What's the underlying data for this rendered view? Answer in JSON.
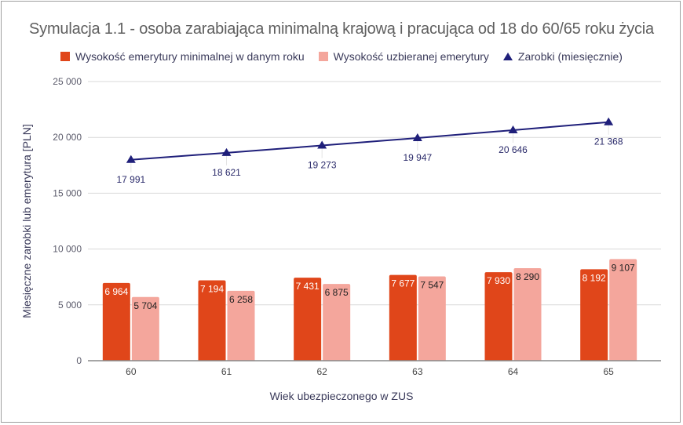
{
  "chart_data": {
    "type": "bar",
    "title": "Symulacja 1.1 - osoba zarabiająca minimalną krajową i pracująca od 18 do 60/65 roku życia",
    "xlabel": "Wiek ubezpieczonego w ZUS",
    "ylabel": "Miesięczne zarobki lub emerytura [PLN]",
    "categories": [
      "60",
      "61",
      "62",
      "63",
      "64",
      "65"
    ],
    "ylim": [
      0,
      25000
    ],
    "yticks": [
      0,
      5000,
      10000,
      15000,
      20000,
      25000
    ],
    "ytick_labels": [
      "0",
      "5 000",
      "10 000",
      "15 000",
      "20 000",
      "25 000"
    ],
    "grid": true,
    "legend_position": "top",
    "series": [
      {
        "name": "Wysokość emerytury minimalnej w danym roku",
        "type": "bar",
        "color": "#e0461a",
        "values": [
          6964,
          7194,
          7431,
          7677,
          7930,
          8192
        ],
        "labels": [
          "6 964",
          "7 194",
          "7 431",
          "7 677",
          "7 930",
          "8 192"
        ]
      },
      {
        "name": "Wysokość uzbieranej emerytury",
        "type": "bar",
        "color": "#f4a69c",
        "values": [
          5704,
          6258,
          6875,
          7547,
          8290,
          9107
        ],
        "labels": [
          "5 704",
          "6 258",
          "6 875",
          "7 547",
          "8 290",
          "9 107"
        ]
      },
      {
        "name": "Zarobki (miesięcznie)",
        "type": "line",
        "marker": "triangle",
        "color": "#1f1f7a",
        "values": [
          17991,
          18621,
          19273,
          19947,
          20646,
          21368
        ],
        "labels": [
          "17 991",
          "18 621",
          "19 273",
          "19 947",
          "20 646",
          "21 368"
        ]
      }
    ]
  },
  "legend": {
    "items": [
      {
        "label": "Wysokość emerytury minimalnej w danym roku",
        "color": "#e0461a",
        "shape": "square"
      },
      {
        "label": "Wysokość uzbieranej emerytury",
        "color": "#f4a69c",
        "shape": "square"
      },
      {
        "label": "Zarobki (miesięcznie)",
        "color": "#1f1f7a",
        "shape": "triangle"
      }
    ]
  }
}
